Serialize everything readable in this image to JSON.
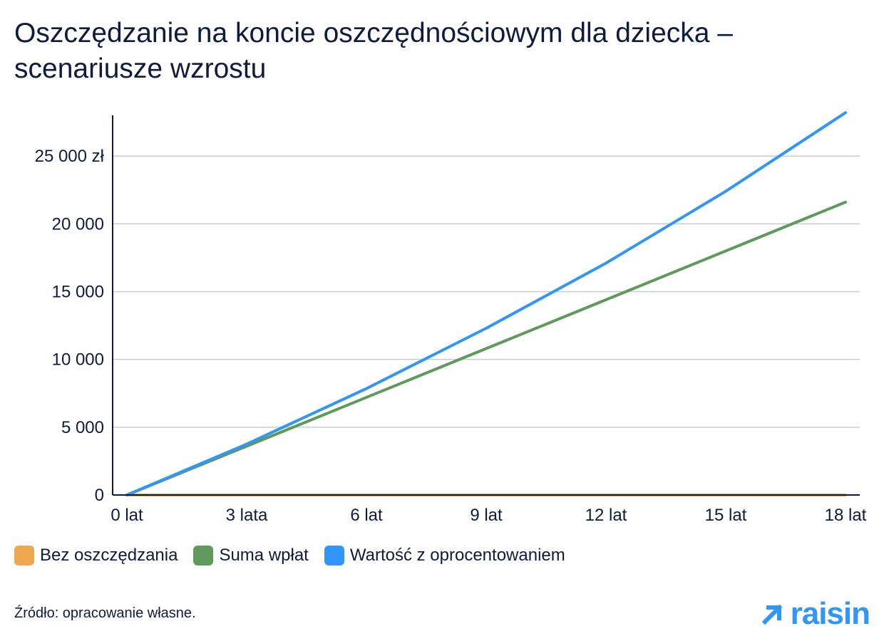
{
  "chart_data": {
    "type": "line",
    "title": "Oszczędzanie na koncie oszczędnościowym dla dziecka – scenariusze wzrostu",
    "x_ticks": [
      "0 lat",
      "3 lata",
      "6 lat",
      "9 lat",
      "12 lat",
      "15 lat",
      "18 lat"
    ],
    "x_range": [
      0,
      18
    ],
    "y_ticks": [
      "0",
      "5 000",
      "10 000",
      "15 000",
      "20 000",
      "25 000 zł"
    ],
    "y_tick_values": [
      0,
      5000,
      10000,
      15000,
      20000,
      25000
    ],
    "y_range": [
      0,
      28000
    ],
    "grid": true,
    "legend_position": "bottom-left",
    "series": [
      {
        "name": "Bez oszczędzania",
        "color": "#f0a850",
        "x": [
          0,
          3,
          6,
          9,
          12,
          15,
          18
        ],
        "values": [
          0,
          0,
          0,
          0,
          0,
          0,
          0
        ]
      },
      {
        "name": "Suma wpłat",
        "color": "#5e9b5a",
        "x": [
          0,
          3,
          6,
          9,
          12,
          15,
          18
        ],
        "values": [
          0,
          3600,
          7200,
          10800,
          14400,
          18000,
          21600
        ]
      },
      {
        "name": "Wartość z oprocentowaniem",
        "color": "#3196f8",
        "x": [
          0,
          3,
          6,
          9,
          12,
          15,
          18
        ],
        "values": [
          0,
          3750,
          7850,
          12300,
          17100,
          22400,
          28200
        ]
      }
    ]
  },
  "source": "Źródło: opracowanie własne.",
  "brand": "raisin",
  "colors": {
    "axis": "#0e1b3d",
    "grid": "#c8ccd3",
    "brand": "#3196f8"
  }
}
